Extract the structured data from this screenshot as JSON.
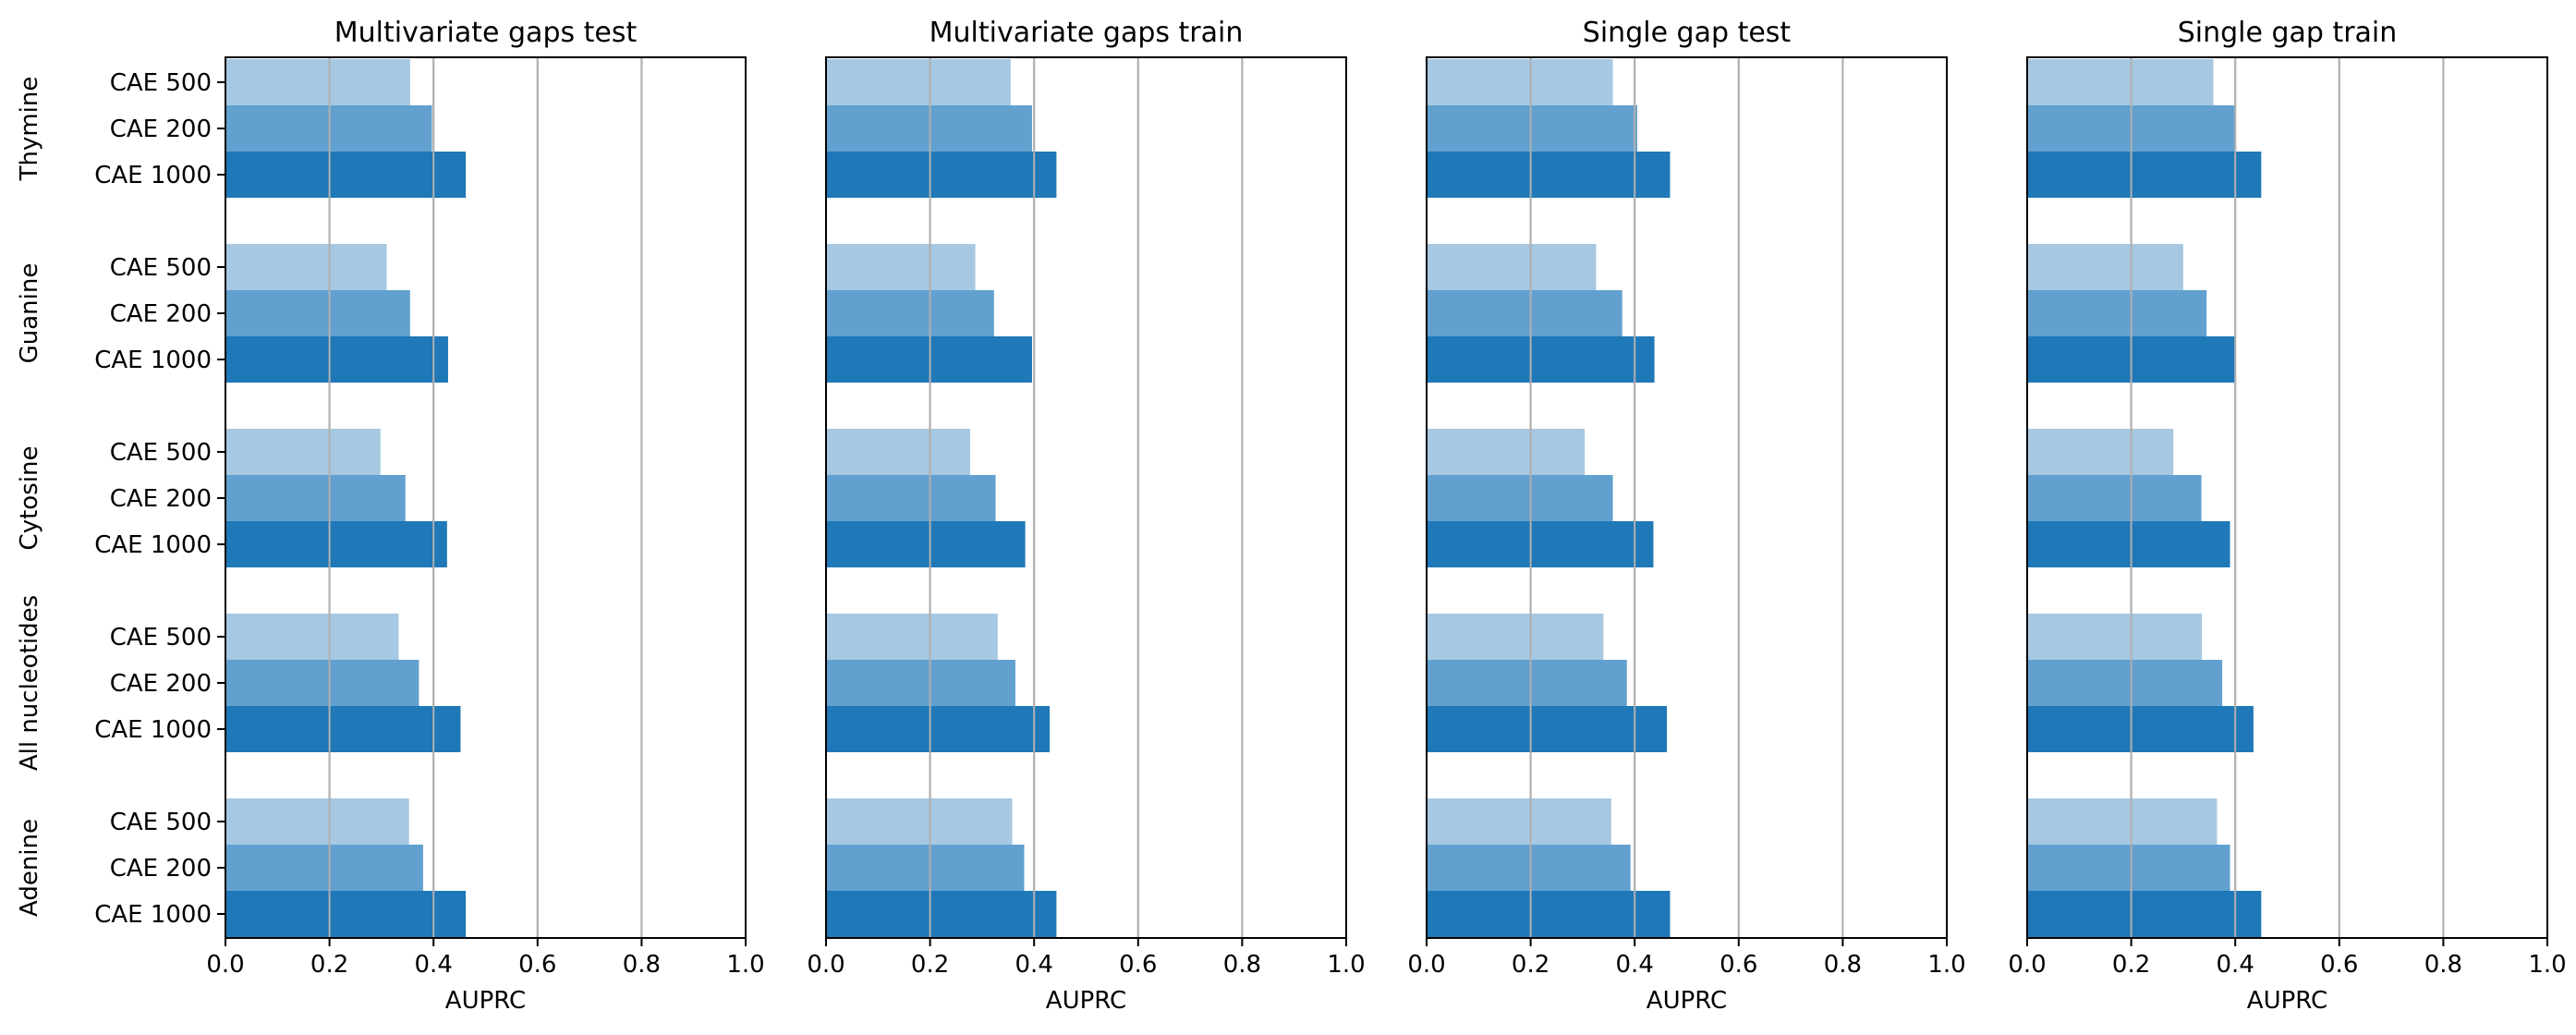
{
  "chart_data": [
    {
      "type": "bar",
      "orientation": "horizontal",
      "title": "Multivariate gaps test",
      "xlabel": "AUPRC",
      "xlim": [
        0,
        1
      ],
      "xticks": [
        "0.0",
        "0.2",
        "0.4",
        "0.6",
        "0.8",
        "1.0"
      ],
      "grid": "vertical",
      "groups": [
        "Thymine",
        "Guanine",
        "Cytosine",
        "All nucleotides",
        "Adenine"
      ],
      "series": [
        {
          "name": "CAE 500",
          "color": "#a6c8e2",
          "values": [
            0.355,
            0.31,
            0.298,
            0.333,
            0.353
          ]
        },
        {
          "name": "CAE 200",
          "color": "#62a1cf",
          "values": [
            0.397,
            0.355,
            0.346,
            0.372,
            0.38
          ]
        },
        {
          "name": "CAE 1000",
          "color": "#1f78b7",
          "values": [
            0.462,
            0.428,
            0.426,
            0.452,
            0.462
          ]
        }
      ]
    },
    {
      "type": "bar",
      "orientation": "horizontal",
      "title": "Multivariate gaps train",
      "xlabel": "AUPRC",
      "xlim": [
        0,
        1
      ],
      "xticks": [
        "0.0",
        "0.2",
        "0.4",
        "0.6",
        "0.8",
        "1.0"
      ],
      "grid": "vertical",
      "groups": [
        "Thymine",
        "Guanine",
        "Cytosine",
        "All nucleotides",
        "Adenine"
      ],
      "series": [
        {
          "name": "CAE 500",
          "color": "#a6c8e2",
          "values": [
            0.355,
            0.287,
            0.277,
            0.33,
            0.358
          ]
        },
        {
          "name": "CAE 200",
          "color": "#62a1cf",
          "values": [
            0.396,
            0.323,
            0.326,
            0.364,
            0.381
          ]
        },
        {
          "name": "CAE 1000",
          "color": "#1f78b7",
          "values": [
            0.443,
            0.396,
            0.383,
            0.43,
            0.443
          ]
        }
      ]
    },
    {
      "type": "bar",
      "orientation": "horizontal",
      "title": "Single gap test",
      "xlabel": "AUPRC",
      "xlim": [
        0,
        1
      ],
      "xticks": [
        "0.0",
        "0.2",
        "0.4",
        "0.6",
        "0.8",
        "1.0"
      ],
      "grid": "vertical",
      "groups": [
        "Thymine",
        "Guanine",
        "Cytosine",
        "All nucleotides",
        "Adenine"
      ],
      "series": [
        {
          "name": "CAE 500",
          "color": "#a6c8e2",
          "values": [
            0.358,
            0.326,
            0.304,
            0.34,
            0.355
          ]
        },
        {
          "name": "CAE 200",
          "color": "#62a1cf",
          "values": [
            0.405,
            0.376,
            0.358,
            0.385,
            0.392
          ]
        },
        {
          "name": "CAE 1000",
          "color": "#1f78b7",
          "values": [
            0.468,
            0.438,
            0.436,
            0.462,
            0.468
          ]
        }
      ]
    },
    {
      "type": "bar",
      "orientation": "horizontal",
      "title": "Single gap train",
      "xlabel": "AUPRC",
      "xlim": [
        0,
        1
      ],
      "xticks": [
        "0.0",
        "0.2",
        "0.4",
        "0.6",
        "0.8",
        "1.0"
      ],
      "grid": "vertical",
      "groups": [
        "Thymine",
        "Guanine",
        "Cytosine",
        "All nucleotides",
        "Adenine"
      ],
      "series": [
        {
          "name": "CAE 500",
          "color": "#a6c8e2",
          "values": [
            0.358,
            0.3,
            0.281,
            0.336,
            0.365
          ]
        },
        {
          "name": "CAE 200",
          "color": "#62a1cf",
          "values": [
            0.4,
            0.345,
            0.335,
            0.375,
            0.39
          ]
        },
        {
          "name": "CAE 1000",
          "color": "#1f78b7",
          "values": [
            0.45,
            0.4,
            0.39,
            0.435,
            0.45
          ]
        }
      ]
    }
  ]
}
